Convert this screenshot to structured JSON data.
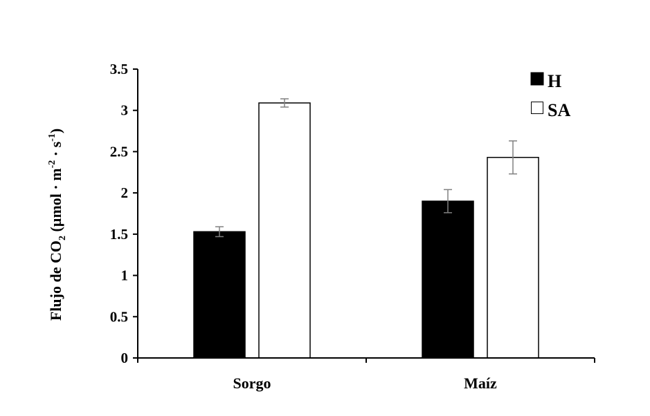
{
  "chart_data": {
    "type": "bar",
    "categories": [
      "Sorgo",
      "Maíz"
    ],
    "series": [
      {
        "name": "H",
        "values": [
          1.53,
          1.9
        ],
        "errors": [
          0.06,
          0.14
        ],
        "fill": "#000000"
      },
      {
        "name": "SA",
        "values": [
          3.09,
          2.43
        ],
        "errors": [
          0.05,
          0.2
        ],
        "fill": "#ffffff"
      }
    ],
    "ylim": [
      0,
      3.5
    ],
    "yticks": [
      0,
      0.5,
      1,
      1.5,
      2,
      2.5,
      3,
      3.5
    ],
    "ytick_labels": [
      "0",
      "0.5",
      "1",
      "1.5",
      "2",
      "2.5",
      "3",
      "3.5"
    ],
    "ylabel": {
      "part1": "Flujo de CO",
      "sub": "2",
      "part2": " (µmol · m",
      "sup1": "-2",
      "part3": " · s",
      "sup2": "-1",
      "part4": ")"
    },
    "xlabel": "",
    "grid": false,
    "legend_position": "top-right",
    "colors": {
      "axis": "#000000",
      "bar_stroke": "#000000",
      "error_bar": "#808080"
    }
  }
}
